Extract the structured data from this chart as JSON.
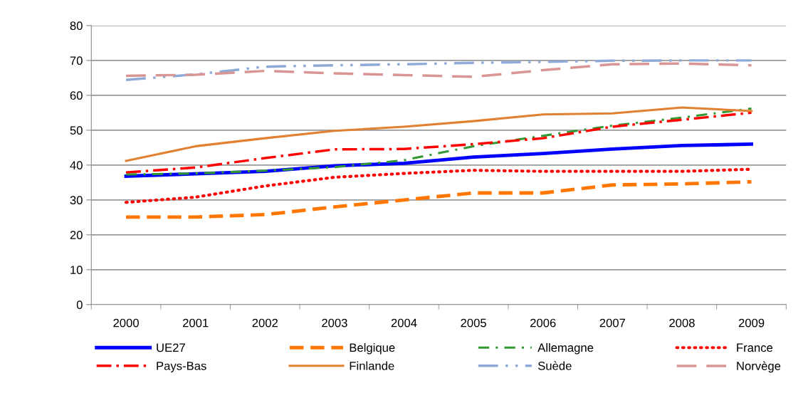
{
  "chart_data": {
    "type": "line",
    "categories": [
      "2000",
      "2001",
      "2002",
      "2003",
      "2004",
      "2005",
      "2006",
      "2007",
      "2008",
      "2009"
    ],
    "ylim": [
      0,
      80
    ],
    "yticks": [
      0,
      10,
      20,
      30,
      40,
      50,
      60,
      70,
      80
    ],
    "grid": "y",
    "legend": "bottom",
    "series": [
      {
        "name": "UE27",
        "color": "#0000ff",
        "line_style": "solid",
        "values": [
          36.8,
          37.5,
          38.2,
          39.8,
          40.5,
          42.3,
          43.3,
          44.6,
          45.6,
          46.0
        ]
      },
      {
        "name": "Belgique",
        "color": "#ff7700",
        "line_style": "dashed",
        "values": [
          25.1,
          25.1,
          25.8,
          28.0,
          30.0,
          32.0,
          32.0,
          34.3,
          34.6,
          35.2
        ]
      },
      {
        "name": "Allemagne",
        "color": "#339933",
        "line_style": "dashdot",
        "values": [
          37.3,
          37.6,
          38.4,
          39.4,
          41.4,
          45.4,
          48.4,
          51.3,
          53.6,
          56.2
        ]
      },
      {
        "name": "France",
        "color": "#ff0000",
        "line_style": "dotted",
        "values": [
          29.3,
          30.8,
          34.0,
          36.5,
          37.6,
          38.5,
          38.2,
          38.2,
          38.2,
          38.8
        ]
      },
      {
        "name": "Pays-Bas",
        "color": "#ff0000",
        "line_style": "longdashdot",
        "values": [
          37.9,
          39.3,
          42.0,
          44.5,
          44.6,
          46.0,
          47.7,
          51.0,
          53.0,
          55.0
        ]
      },
      {
        "name": "Finlande",
        "color": "#e08030",
        "line_style": "solid",
        "values": [
          41.2,
          45.4,
          47.7,
          49.8,
          51.0,
          52.6,
          54.5,
          54.8,
          56.5,
          55.5
        ]
      },
      {
        "name": "Suède",
        "color": "#8eaad6",
        "line_style": "dashdotdot",
        "values": [
          64.4,
          66.0,
          68.2,
          68.6,
          68.9,
          69.3,
          69.6,
          69.9,
          70.0,
          70.0
        ]
      },
      {
        "name": "Norvège",
        "color": "#d99594",
        "line_style": "longdash",
        "values": [
          65.6,
          65.9,
          67.0,
          66.3,
          65.8,
          65.3,
          67.2,
          68.9,
          69.1,
          68.6
        ]
      }
    ]
  }
}
